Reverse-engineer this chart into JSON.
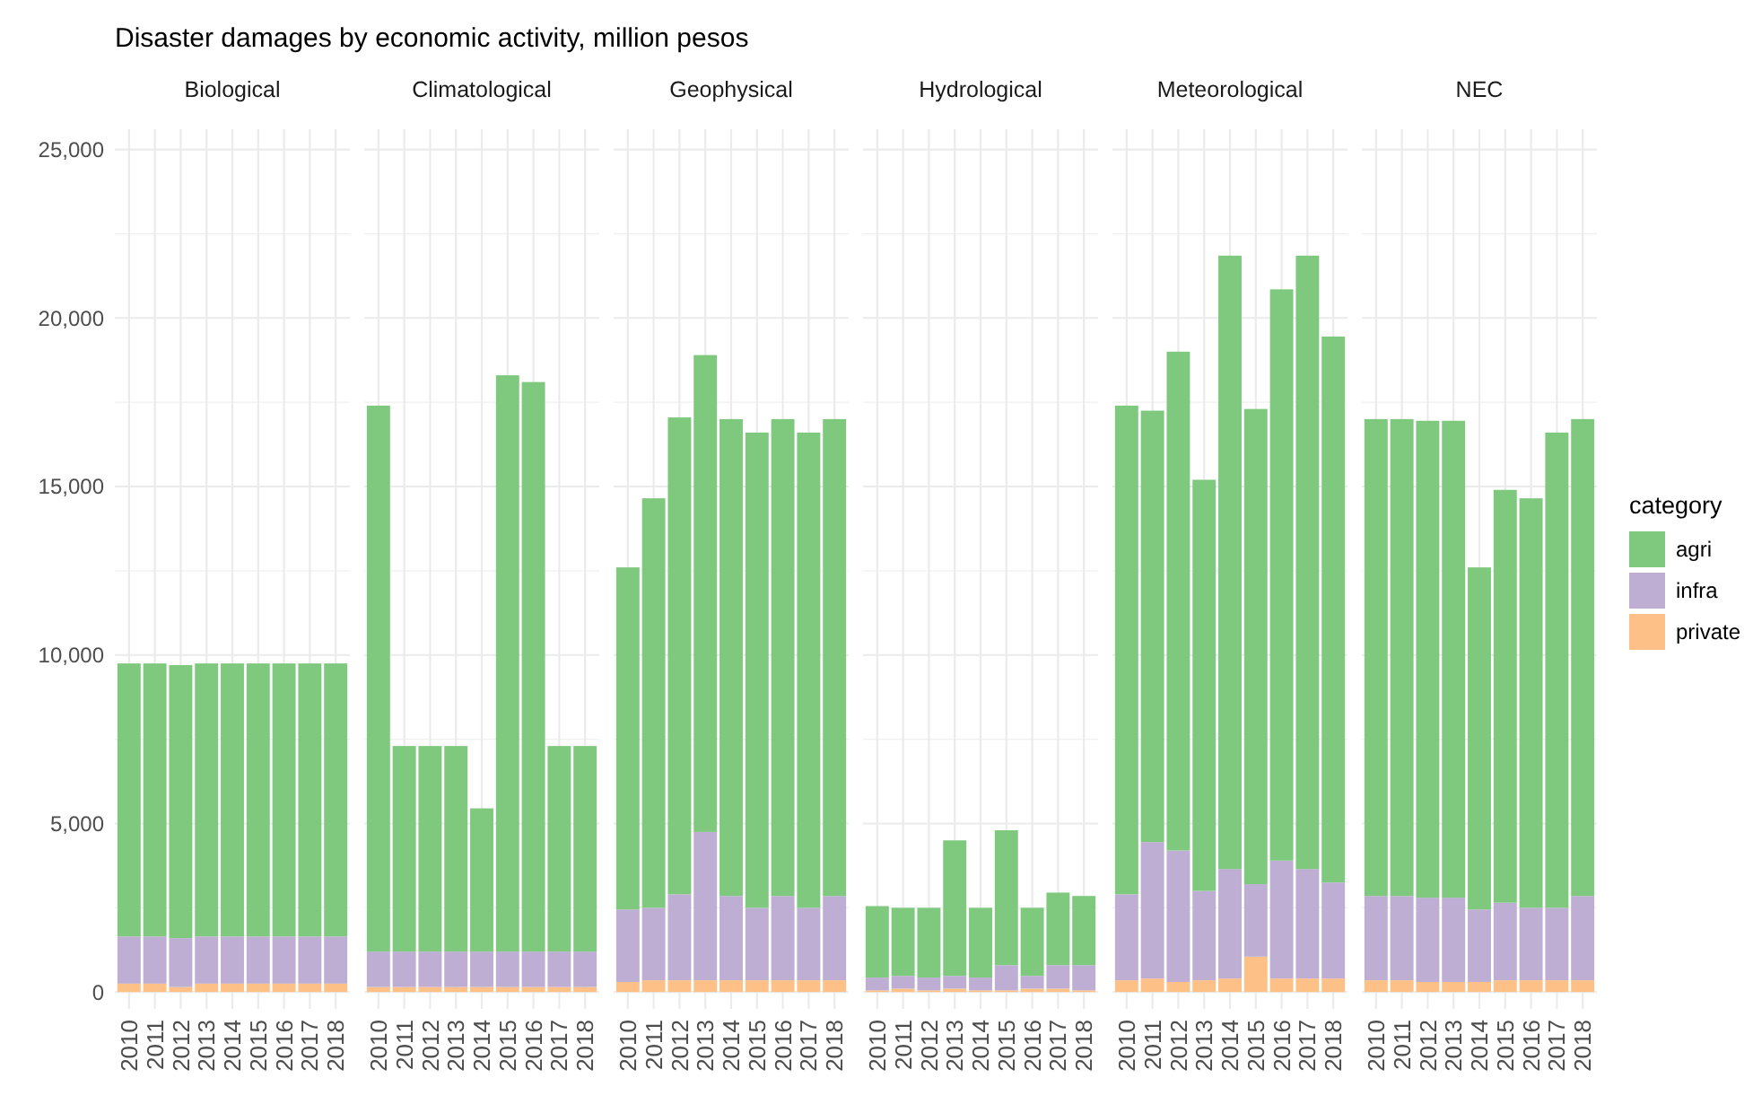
{
  "chart_data": [
    {
      "type": "bar",
      "title": "Disaster damages by economic activity, million pesos",
      "subtitle": "Biological",
      "stacked": true,
      "grid": true,
      "ylim": [
        -500,
        25600
      ],
      "yticks": [
        {
          "value": 0,
          "label": "0"
        },
        {
          "value": 5000,
          "label": "5,000"
        },
        {
          "value": 10000,
          "label": "10,000"
        },
        {
          "value": 15000,
          "label": "15,000"
        },
        {
          "value": 20000,
          "label": "20,000"
        },
        {
          "value": 25000,
          "label": "25,000"
        }
      ],
      "categories": [
        "2010",
        "2011",
        "2012",
        "2013",
        "2014",
        "2015",
        "2016",
        "2017",
        "2018"
      ],
      "series": [
        {
          "color": "#fdc086",
          "values": [
            250,
            250,
            150,
            250,
            250,
            250,
            250,
            250,
            250
          ]
        },
        {
          "color": "#beaed4",
          "values": [
            1400,
            1400,
            1450,
            1400,
            1400,
            1400,
            1400,
            1400,
            1400
          ]
        },
        {
          "color": "#7fc97f",
          "values": [
            8100,
            8100,
            8100,
            8100,
            8100,
            8100,
            8100,
            8100,
            8100
          ]
        }
      ]
    },
    {
      "type": "bar",
      "subtitle": "Climatological",
      "stacked": true,
      "grid": true,
      "tick_labels": "x",
      "ylim": [
        -500,
        25600
      ],
      "yticks": [
        {
          "value": 0,
          "label": null
        },
        {
          "value": 5000,
          "label": null
        },
        {
          "value": 10000,
          "label": null
        },
        {
          "value": 15000,
          "label": null
        },
        {
          "value": 20000,
          "label": null
        },
        {
          "value": 25000,
          "label": null
        }
      ],
      "categories": [
        "2010",
        "2011",
        "2012",
        "2013",
        "2014",
        "2015",
        "2016",
        "2017",
        "2018"
      ],
      "series": [
        {
          "color": "#fdc086",
          "values": [
            150,
            150,
            150,
            150,
            150,
            150,
            150,
            150,
            150
          ]
        },
        {
          "color": "#beaed4",
          "values": [
            1050,
            1050,
            1050,
            1050,
            1050,
            1050,
            1050,
            1050,
            1050
          ]
        },
        {
          "color": "#7fc97f",
          "values": [
            16200,
            6100,
            6100,
            6100,
            4250,
            17100,
            16900,
            6100,
            6100
          ]
        }
      ]
    },
    {
      "type": "bar",
      "subtitle": "Geophysical",
      "stacked": true,
      "grid": true,
      "tick_labels": "x",
      "ylim": [
        -500,
        25600
      ],
      "yticks": [
        {
          "value": 0,
          "label": null
        },
        {
          "value": 5000,
          "label": null
        },
        {
          "value": 10000,
          "label": null
        },
        {
          "value": 15000,
          "label": null
        },
        {
          "value": 20000,
          "label": null
        },
        {
          "value": 25000,
          "label": null
        }
      ],
      "categories": [
        "2010",
        "2011",
        "2012",
        "2013",
        "2014",
        "2015",
        "2016",
        "2017",
        "2018"
      ],
      "series": [
        {
          "color": "#fdc086",
          "values": [
            300,
            350,
            350,
            350,
            350,
            350,
            350,
            350,
            350
          ]
        },
        {
          "color": "#beaed4",
          "values": [
            2150,
            2150,
            2550,
            4400,
            2500,
            2150,
            2500,
            2150,
            2500
          ]
        },
        {
          "color": "#7fc97f",
          "values": [
            10150,
            12150,
            14150,
            14150,
            14150,
            14100,
            14150,
            14100,
            14150
          ]
        }
      ]
    },
    {
      "type": "bar",
      "subtitle": "Hydrological",
      "stacked": true,
      "grid": true,
      "tick_labels": "x",
      "ylim": [
        -500,
        25600
      ],
      "yticks": [
        {
          "value": 0,
          "label": null
        },
        {
          "value": 5000,
          "label": null
        },
        {
          "value": 10000,
          "label": null
        },
        {
          "value": 15000,
          "label": null
        },
        {
          "value": 20000,
          "label": null
        },
        {
          "value": 25000,
          "label": null
        }
      ],
      "categories": [
        "2010",
        "2011",
        "2012",
        "2013",
        "2014",
        "2015",
        "2016",
        "2017",
        "2018"
      ],
      "series": [
        {
          "color": "#fdc086",
          "values": [
            50,
            100,
            50,
            100,
            50,
            50,
            100,
            100,
            50
          ]
        },
        {
          "color": "#beaed4",
          "values": [
            380,
            380,
            380,
            380,
            380,
            750,
            380,
            700,
            750
          ]
        },
        {
          "color": "#7fc97f",
          "values": [
            2120,
            2020,
            2070,
            4020,
            2070,
            4000,
            2020,
            2150,
            2050
          ]
        }
      ]
    },
    {
      "type": "bar",
      "subtitle": "Meteorological",
      "stacked": true,
      "grid": true,
      "tick_labels": "x",
      "ylim": [
        -500,
        25600
      ],
      "yticks": [
        {
          "value": 0,
          "label": null
        },
        {
          "value": 5000,
          "label": null
        },
        {
          "value": 10000,
          "label": null
        },
        {
          "value": 15000,
          "label": null
        },
        {
          "value": 20000,
          "label": null
        },
        {
          "value": 25000,
          "label": null
        }
      ],
      "categories": [
        "2010",
        "2011",
        "2012",
        "2013",
        "2014",
        "2015",
        "2016",
        "2017",
        "2018"
      ],
      "series": [
        {
          "color": "#fdc086",
          "values": [
            350,
            400,
            300,
            350,
            400,
            1050,
            400,
            400,
            400
          ]
        },
        {
          "color": "#beaed4",
          "values": [
            2550,
            4050,
            3900,
            2650,
            3250,
            2150,
            3500,
            3250,
            2850
          ]
        },
        {
          "color": "#7fc97f",
          "values": [
            14500,
            12800,
            14800,
            12200,
            18200,
            14100,
            16950,
            18200,
            16200
          ]
        }
      ]
    },
    {
      "type": "bar",
      "subtitle": "NEC",
      "stacked": true,
      "grid": true,
      "tick_labels": "x",
      "legend": "right",
      "legend_title": "category",
      "ylim": [
        -500,
        25600
      ],
      "yticks": [
        {
          "value": 0,
          "label": null
        },
        {
          "value": 5000,
          "label": null
        },
        {
          "value": 10000,
          "label": null
        },
        {
          "value": 15000,
          "label": null
        },
        {
          "value": 20000,
          "label": null
        },
        {
          "value": 25000,
          "label": null
        }
      ],
      "categories": [
        "2010",
        "2011",
        "2012",
        "2013",
        "2014",
        "2015",
        "2016",
        "2017",
        "2018"
      ],
      "series": [
        {
          "name": "private",
          "color": "#fdc086",
          "values": [
            350,
            350,
            300,
            300,
            300,
            350,
            350,
            350,
            350
          ]
        },
        {
          "name": "infra",
          "color": "#beaed4",
          "values": [
            2500,
            2500,
            2500,
            2500,
            2150,
            2300,
            2150,
            2150,
            2500
          ]
        },
        {
          "name": "agri",
          "color": "#7fc97f",
          "values": [
            14150,
            14150,
            14150,
            14150,
            10150,
            12250,
            12150,
            14100,
            14150
          ]
        }
      ]
    }
  ]
}
